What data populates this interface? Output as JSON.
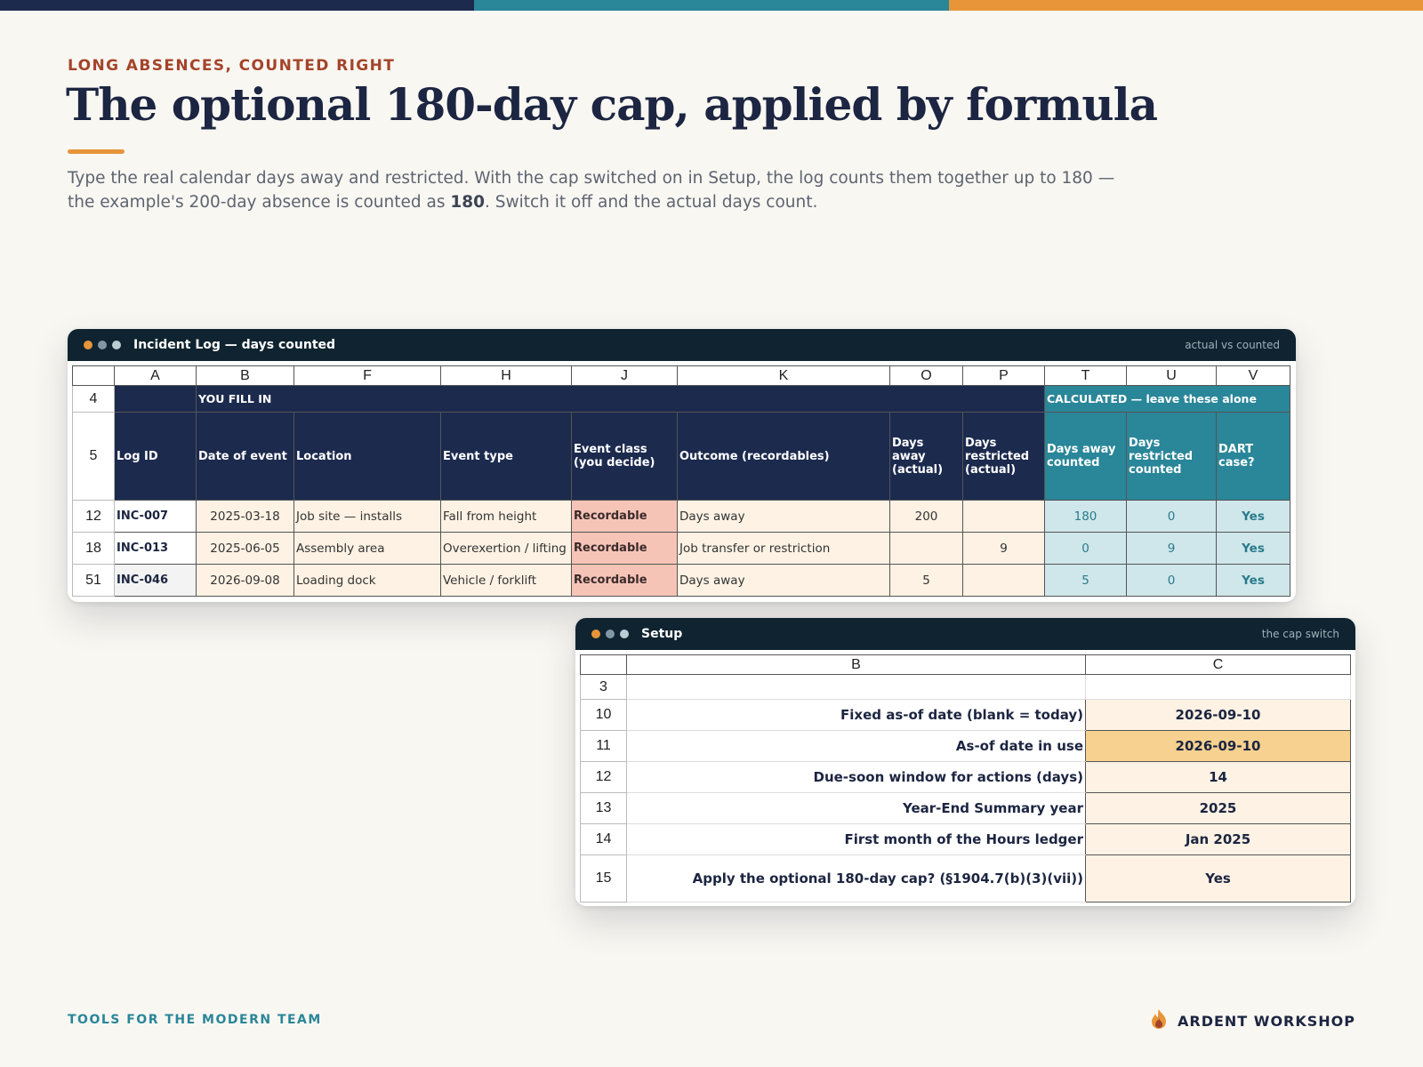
{
  "colors": {
    "navy": "#1c2a4e",
    "teal": "#2a8699",
    "orange": "#e8953a",
    "rust": "#a4442a"
  },
  "eyebrow": "LONG ABSENCES, COUNTED RIGHT",
  "title": "The optional 180-day cap, applied by formula",
  "lede": {
    "part1": "Type the real calendar days away and restricted. With the cap switched on in Setup, the log counts them together up to 180 — the example's 200-day absence is counted as ",
    "bold": "180",
    "part2": ". Switch it off and the actual days count."
  },
  "incident_window": {
    "title": "Incident Log — days counted",
    "note": "actual vs counted",
    "columns": [
      "A",
      "B",
      "F",
      "H",
      "J",
      "K",
      "O",
      "P",
      "T",
      "U",
      "V"
    ],
    "band": {
      "row": "4",
      "fill_label": "YOU FILL IN",
      "calc_label": "CALCULATED — leave these alone"
    },
    "header": {
      "row": "5",
      "log_id": "Log ID",
      "date": "Date of event",
      "location": "Location",
      "event_type": "Event type",
      "event_class": "Event class (you decide)",
      "outcome": "Outcome (recordables)",
      "days_away_actual": "Days away (actual)",
      "days_restricted_actual": "Days restricted (actual)",
      "days_away_counted": "Days away counted",
      "days_restricted_counted": "Days restricted counted",
      "dart": "DART case?"
    },
    "rows": [
      {
        "row": "12",
        "id": "INC-007",
        "date": "2025-03-18",
        "location": "Job site — installs",
        "event_type": "Fall from height",
        "event_class": "Recordable",
        "outcome": "Days away",
        "away": "200",
        "restricted": "",
        "away_counted": "180",
        "restricted_counted": "0",
        "dart": "Yes"
      },
      {
        "row": "18",
        "id": "INC-013",
        "date": "2025-06-05",
        "location": "Assembly area",
        "event_type": "Overexertion / lifting",
        "event_class": "Recordable",
        "outcome": "Job transfer or restriction",
        "away": "",
        "restricted": "9",
        "away_counted": "0",
        "restricted_counted": "9",
        "dart": "Yes"
      },
      {
        "row": "51",
        "id": "INC-046",
        "date": "2026-09-08",
        "location": "Loading dock",
        "event_type": "Vehicle / forklift",
        "event_class": "Recordable",
        "outcome": "Days away",
        "away": "5",
        "restricted": "",
        "away_counted": "5",
        "restricted_counted": "0",
        "dart": "Yes"
      }
    ]
  },
  "setup_window": {
    "title": "Setup",
    "note": "the cap switch",
    "columns": [
      "B",
      "C"
    ],
    "rows": [
      {
        "row": "3",
        "label": "",
        "value": ""
      },
      {
        "row": "10",
        "label": "Fixed as-of date (blank = today)",
        "value": "2026-09-10"
      },
      {
        "row": "11",
        "label": "As-of date in use",
        "value": "2026-09-10"
      },
      {
        "row": "12",
        "label": "Due-soon window for actions (days)",
        "value": "14"
      },
      {
        "row": "13",
        "label": "Year-End Summary year",
        "value": "2025"
      },
      {
        "row": "14",
        "label": "First month of the Hours ledger",
        "value": "Jan 2025"
      },
      {
        "row": "15",
        "label": "Apply the optional 180-day cap? (§1904.7(b)(3)(vii))",
        "value": "Yes"
      }
    ]
  },
  "footer": {
    "left": "TOOLS FOR THE MODERN TEAM",
    "brand": "ARDENT WORKSHOP",
    "brand_icon": "flame-icon"
  }
}
